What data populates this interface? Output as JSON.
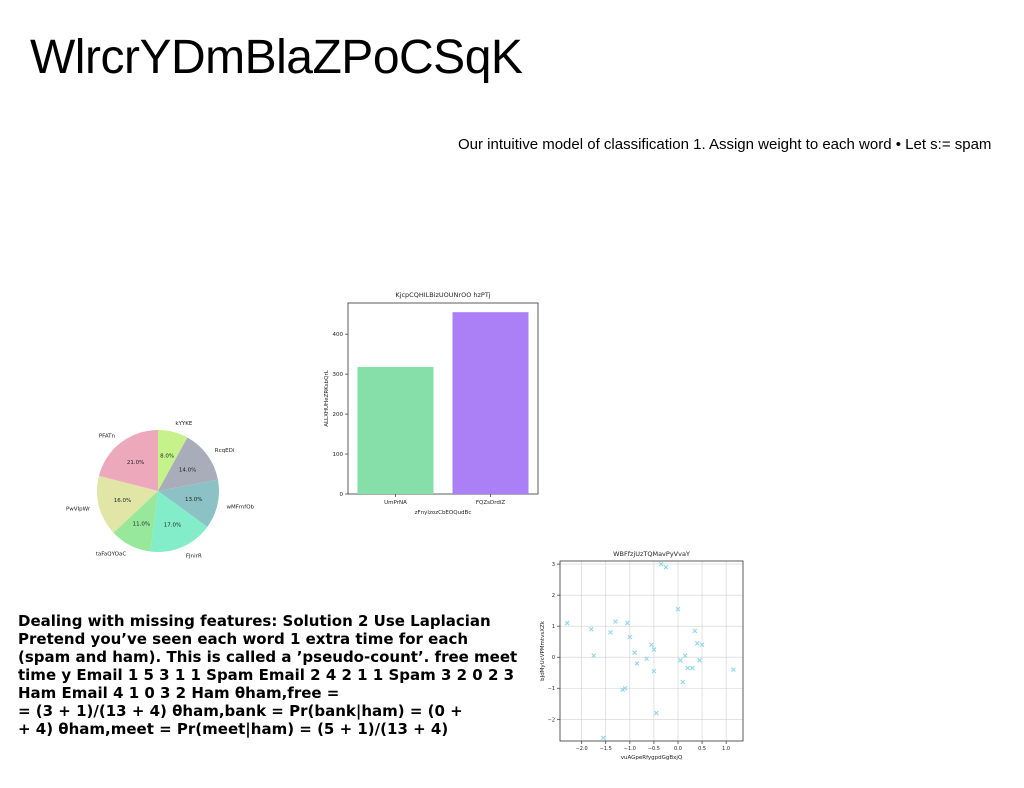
{
  "slide": {
    "title": "WlrcrYDmBlaZPoCSqK",
    "subtitle": "Our intuitive model of classification 1. Assign weight to each word • Let s:= spam",
    "body": "Dealing with missing features: Solution 2 Use Laplacian Pretend you’ve seen each word 1 extra time for each (spam and ham). This is called a ’pseudo-count’. free meet time y Email 1 5 3 1 1 Spam Email 2 4 2 1 1 Spam 3 2 0 2 3 Ham Email 4 1 0 3 2 Ham θham,free =\n= (3 + 1)/(13 + 4) θham,bank = Pr(bank|ham) = (0 +\n+ 4) θham,meet = Pr(meet|ham) = (5 + 1)/(13 + 4)"
  },
  "chart_data": [
    {
      "type": "pie",
      "labels": [
        "kYYKE",
        "RcqEDi",
        "wMFmfOb",
        "FJnirR",
        "taFaQYOaC",
        "PwVIpWr",
        "PFATn"
      ],
      "values": [
        8.0,
        14.0,
        13.0,
        17.0,
        11.0,
        16.0,
        21.0
      ],
      "value_labels": [
        "8.0%",
        "14.0%",
        "13.0%",
        "17.0%",
        "11.0%",
        "16.0%",
        "21.0%"
      ],
      "colors": [
        "#c5f28a",
        "#a8adb9",
        "#8cc2c6",
        "#83ecc8",
        "#97e89b",
        "#e1e6a7",
        "#eea8bc"
      ]
    },
    {
      "type": "bar",
      "title": "KjcpCQHILBizUOUNrOO hzPTj",
      "xlabel": "zFnylzozCbEOQudBc",
      "ylabel": "ALLXHUHeZRKsbQrL",
      "categories": [
        "UmPrNA",
        "FQZsDrdiZ"
      ],
      "values": [
        318,
        455
      ],
      "colors": [
        "#86dea9",
        "#ab80f6"
      ],
      "ylim": [
        0,
        478
      ],
      "yticks": [
        0,
        100,
        200,
        300,
        400
      ]
    },
    {
      "type": "scatter",
      "title": "WBFfzjUzTQMavPyVvaY",
      "xlabel": "vuAGpeRfygpdGgBxjQ",
      "ylabel": "bJdMyUcVPMmtvsXZk",
      "xlim": [
        -2.45,
        1.35
      ],
      "ylim": [
        -2.7,
        3.1
      ],
      "xticks": [
        -2.0,
        -1.5,
        -1.0,
        -0.5,
        0.0,
        0.5,
        1.0
      ],
      "xtick_labels": [
        "−2.0",
        "−1.5",
        "−1.0",
        "−0.5",
        "0.0",
        "0.5",
        "1.0"
      ],
      "yticks": [
        -2,
        -1,
        0,
        1,
        2,
        3
      ],
      "ytick_labels": [
        "−2",
        "−1",
        "0",
        "1",
        "2",
        "3"
      ],
      "grid": true,
      "marker": "x",
      "color": "#8fd8ec",
      "x": [
        -2.3,
        -1.8,
        -1.75,
        -1.55,
        -1.4,
        -1.3,
        -1.15,
        -1.1,
        -1.05,
        -1.0,
        -0.9,
        -0.85,
        -0.65,
        -0.55,
        -0.5,
        -0.5,
        -0.45,
        -0.35,
        -0.25,
        0.0,
        0.05,
        0.1,
        0.15,
        0.2,
        0.3,
        0.35,
        0.4,
        0.45,
        0.5,
        1.15
      ],
      "y": [
        1.1,
        0.9,
        0.05,
        -2.6,
        0.8,
        1.15,
        -1.05,
        -1.0,
        1.1,
        0.65,
        0.15,
        -0.2,
        -0.05,
        0.4,
        0.25,
        -0.45,
        -1.8,
        3.0,
        2.9,
        1.55,
        -0.1,
        -0.8,
        0.05,
        -0.35,
        -0.35,
        0.85,
        0.45,
        -0.1,
        0.4,
        -0.4
      ]
    }
  ]
}
